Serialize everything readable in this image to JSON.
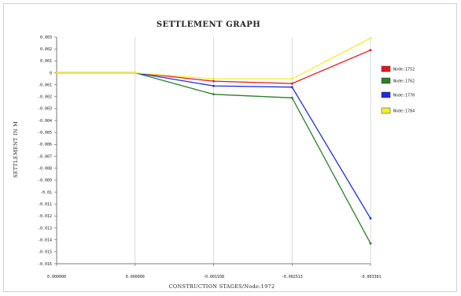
{
  "chart_data": {
    "type": "line",
    "title": "SETTLEMENT GRAPH",
    "xlabel": "CONSTRUCTION STAGES/Node:1972",
    "ylabel": "SETTLEMENT IN M",
    "x": [
      "0.000000",
      "0.000000",
      "-0.001938",
      "-0.002513",
      "-0.003381"
    ],
    "ylim": [
      -0.016,
      0.003
    ],
    "yticks": [
      "0.003",
      "0.002",
      "0.001",
      "0",
      "-0.001",
      "-0.002",
      "-0.003",
      "-0.004",
      "-0.005",
      "-0.006",
      "-0.007",
      "-0.008",
      "-0.009",
      "-0.01",
      "-0.011",
      "-0.012",
      "-0.013",
      "-0.014",
      "-0.015",
      "-0.016"
    ],
    "yticks_values": [
      0.003,
      0.002,
      0.001,
      0,
      -0.001,
      -0.002,
      -0.003,
      -0.004,
      -0.005,
      -0.006,
      -0.007,
      -0.008,
      -0.009,
      -0.01,
      -0.011,
      -0.012,
      -0.013,
      -0.014,
      -0.015,
      -0.016
    ],
    "grid": "vertical",
    "legend_position": "right",
    "series": [
      {
        "name": "Node:1752",
        "color": "#e8141c",
        "values": [
          0,
          0,
          -0.0007,
          -0.0009,
          0.0019
        ]
      },
      {
        "name": "Node:1762",
        "color": "#2a7f2a",
        "values": [
          0,
          0,
          -0.0018,
          -0.0021,
          -0.0143
        ]
      },
      {
        "name": "Node:1770",
        "color": "#1f2bdc",
        "values": [
          0,
          0,
          -0.0011,
          -0.0012,
          -0.0122
        ]
      },
      {
        "name": "Node:1784",
        "color": "#f5ee2e",
        "values": [
          0,
          0,
          -0.0005,
          -0.0005,
          0.0029
        ]
      }
    ]
  }
}
